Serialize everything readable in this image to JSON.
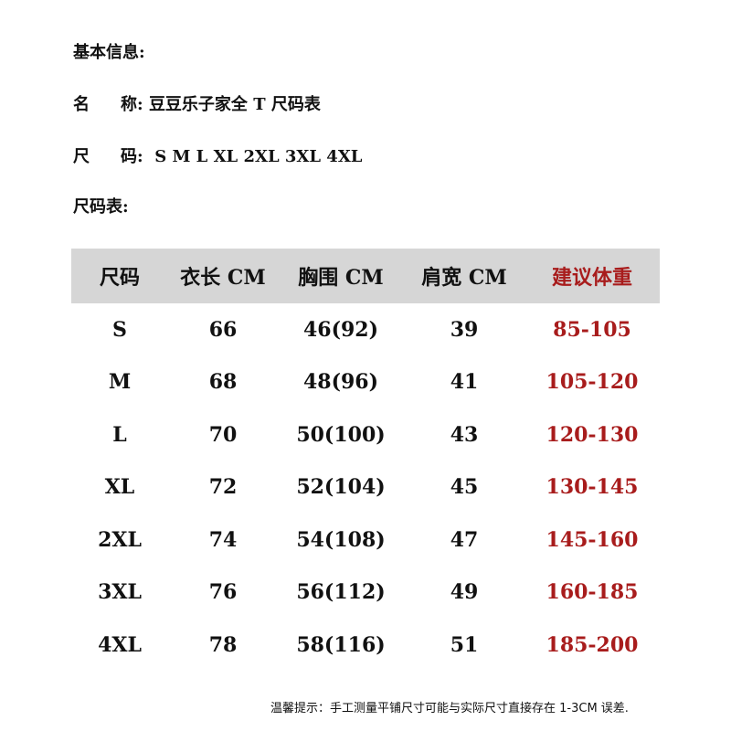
{
  "basic_info_heading": "基本信息:",
  "name_label_1": "名",
  "name_label_2": "称:",
  "name_value": "豆豆乐子家全 T 尺码表",
  "size_label_1": "尺",
  "size_label_2": "码:",
  "size_value": "S M L XL 2XL 3XL 4XL",
  "table_heading": "尺码表:",
  "accent_color": "#a81c1c",
  "columns": [
    "尺码",
    "衣长 CM",
    "胸围 CM",
    "肩宽 CM",
    "建议体重"
  ],
  "rows": [
    [
      "S",
      "66",
      "46(92)",
      "39",
      "85-105"
    ],
    [
      "M",
      "68",
      "48(96)",
      "41",
      "105-120"
    ],
    [
      "L",
      "70",
      "50(100)",
      "43",
      "120-130"
    ],
    [
      "XL",
      "72",
      "52(104)",
      "45",
      "130-145"
    ],
    [
      "2XL",
      "74",
      "54(108)",
      "47",
      "145-160"
    ],
    [
      "3XL",
      "76",
      "56(112)",
      "49",
      "160-185"
    ],
    [
      "4XL",
      "78",
      "58(116)",
      "51",
      "185-200"
    ]
  ],
  "note": "温馨提示：手工测量平铺尺寸可能与实际尺寸直接存在 1-3CM 误差."
}
